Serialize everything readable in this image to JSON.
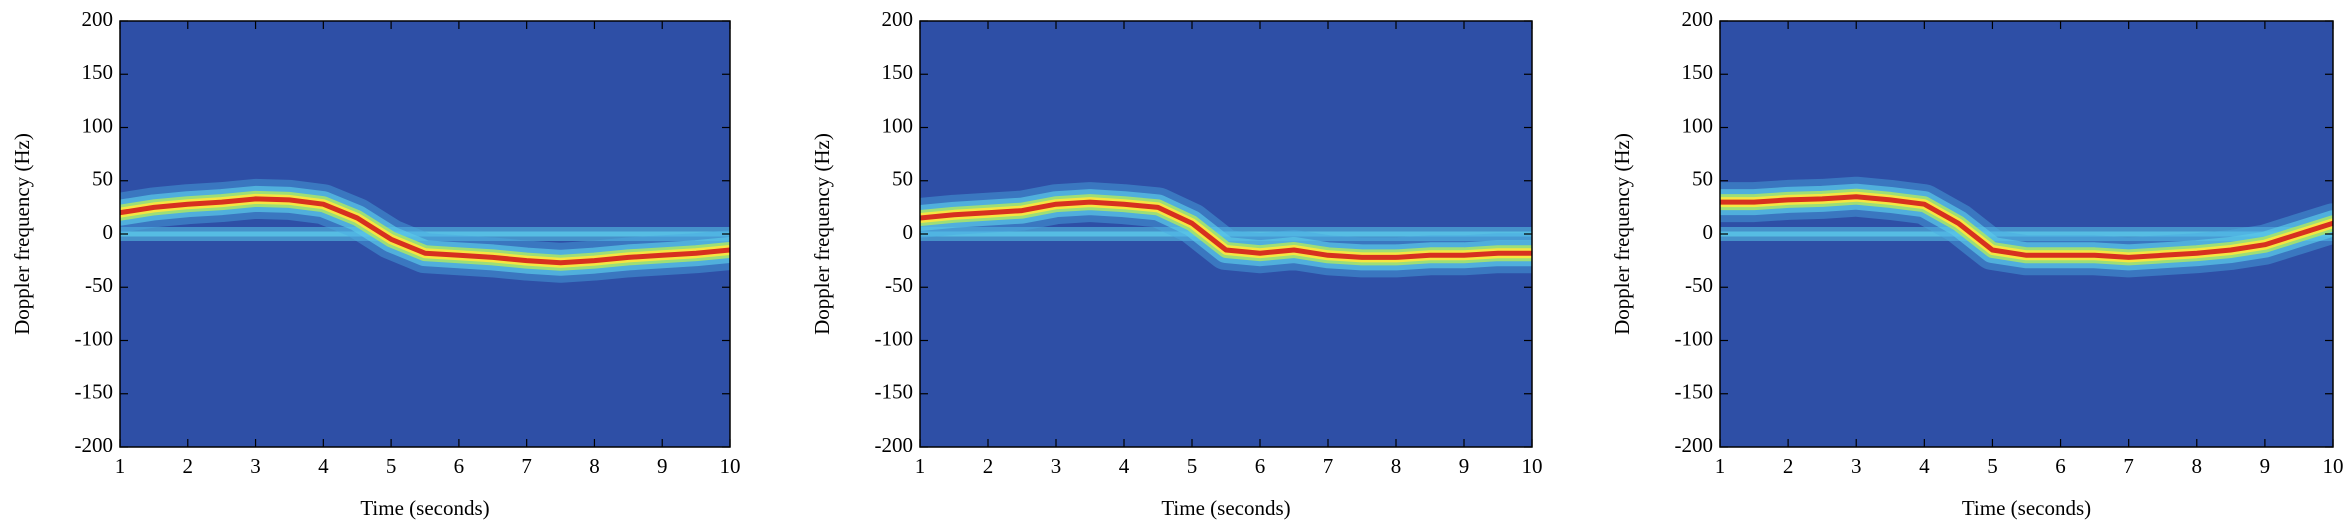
{
  "chart_data": [
    {
      "type": "spectrogram",
      "xlabel": "Time (seconds)",
      "ylabel": "Doppler frequency (Hz)",
      "xlim": [
        1,
        10
      ],
      "xticks": [
        1,
        2,
        3,
        4,
        5,
        6,
        7,
        8,
        9,
        10
      ],
      "ylim": [
        -200,
        200
      ],
      "yticks": [
        -200,
        -150,
        -100,
        -50,
        0,
        50,
        100,
        150,
        200
      ],
      "background": "#2e4fa6",
      "x": [
        1,
        1.5,
        2,
        2.5,
        3,
        3.5,
        4,
        4.5,
        5,
        5.5,
        6,
        6.5,
        7,
        7.5,
        8,
        8.5,
        9,
        9.5,
        10
      ],
      "series": [
        {
          "color": "#5ac8e8",
          "values": [
            0,
            0,
            0,
            0,
            0,
            0,
            0,
            0,
            0,
            0,
            0,
            0,
            0,
            0,
            0,
            0,
            0,
            0,
            0
          ]
        },
        {
          "color": "#d7301f",
          "values": [
            20,
            25,
            28,
            30,
            33,
            32,
            28,
            15,
            -5,
            -18,
            -20,
            -22,
            -25,
            -27,
            -25,
            -22,
            -20,
            -18,
            -15
          ]
        }
      ]
    },
    {
      "type": "spectrogram",
      "xlabel": "Time (seconds)",
      "ylabel": "Doppler frequency (Hz)",
      "xlim": [
        1,
        10
      ],
      "xticks": [
        1,
        2,
        3,
        4,
        5,
        6,
        7,
        8,
        9,
        10
      ],
      "ylim": [
        -200,
        200
      ],
      "yticks": [
        -200,
        -150,
        -100,
        -50,
        0,
        50,
        100,
        150,
        200
      ],
      "background": "#2e4fa6",
      "x": [
        1,
        1.5,
        2,
        2.5,
        3,
        3.5,
        4,
        4.5,
        5,
        5.5,
        6,
        6.5,
        7,
        7.5,
        8,
        8.5,
        9,
        9.5,
        10
      ],
      "series": [
        {
          "color": "#5ac8e8",
          "values": [
            0,
            0,
            0,
            0,
            0,
            0,
            0,
            0,
            0,
            0,
            0,
            0,
            0,
            0,
            0,
            0,
            0,
            0,
            0
          ]
        },
        {
          "color": "#d7301f",
          "values": [
            15,
            18,
            20,
            22,
            28,
            30,
            28,
            25,
            10,
            -15,
            -18,
            -15,
            -20,
            -22,
            -22,
            -20,
            -20,
            -18,
            -18
          ]
        }
      ]
    },
    {
      "type": "spectrogram",
      "xlabel": "Time (seconds)",
      "ylabel": "Doppler frequency (Hz)",
      "xlim": [
        1,
        10
      ],
      "xticks": [
        1,
        2,
        3,
        4,
        5,
        6,
        7,
        8,
        9,
        10
      ],
      "ylim": [
        -200,
        200
      ],
      "yticks": [
        -200,
        -150,
        -100,
        -50,
        0,
        50,
        100,
        150,
        200
      ],
      "background": "#2e4fa6",
      "x": [
        1,
        1.5,
        2,
        2.5,
        3,
        3.5,
        4,
        4.5,
        5,
        5.5,
        6,
        6.5,
        7,
        7.5,
        8,
        8.5,
        9,
        9.5,
        10
      ],
      "series": [
        {
          "color": "#5ac8e8",
          "values": [
            0,
            0,
            0,
            0,
            0,
            0,
            0,
            0,
            0,
            0,
            0,
            0,
            0,
            0,
            0,
            0,
            0,
            0,
            0
          ]
        },
        {
          "color": "#d7301f",
          "values": [
            30,
            30,
            32,
            33,
            35,
            32,
            28,
            10,
            -15,
            -20,
            -20,
            -20,
            -22,
            -20,
            -18,
            -15,
            -10,
            0,
            10
          ]
        }
      ]
    }
  ]
}
